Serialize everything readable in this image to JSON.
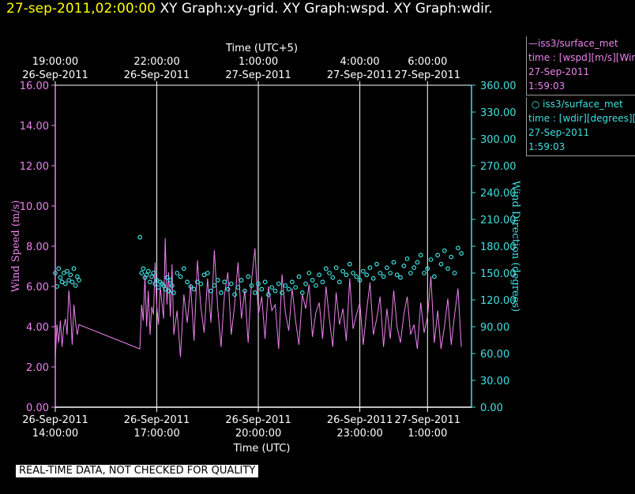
{
  "header": {
    "date": "27-sep-2011,02:00:00",
    "titles": "XY Graph:xy-grid.  XY Graph:wspd.  XY Graph:wdir."
  },
  "legend": {
    "wspd": {
      "source": "iss3/surface_met",
      "desc": "time : [wspd][m/s][Wind",
      "date": "27-Sep-2011",
      "time": "1:59:03"
    },
    "wdir": {
      "source": "iss3/surface_met",
      "desc": "time : [wdir][degrees][W",
      "date": "27-Sep-2011",
      "time": "1:59:03"
    }
  },
  "quality_note": "REAL-TIME DATA, NOT CHECKED FOR QUALITY",
  "colors": {
    "wspd": "#ee82ee",
    "wdir": "#40e0e0",
    "grid": "#ffffff"
  },
  "chart_data": {
    "type": "scatter",
    "x_axis": {
      "title_bottom": "Time (UTC)",
      "title_top": "Time (UTC+5)",
      "range_hours_utc": [
        14.0,
        26.3
      ],
      "bottom_ticks": [
        {
          "t": 14.0,
          "date": "26-Sep-2011",
          "time": "14:00:00"
        },
        {
          "t": 17.0,
          "date": "26-Sep-2011",
          "time": "17:00:00"
        },
        {
          "t": 20.0,
          "date": "26-Sep-2011",
          "time": "20:00:00"
        },
        {
          "t": 23.0,
          "date": "26-Sep-2011",
          "time": "23:00:00"
        },
        {
          "t": 25.0,
          "date": "27-Sep-2011",
          "time": "1:00:00"
        }
      ],
      "top_ticks": [
        {
          "t": 14.0,
          "time": "19:00:00",
          "date": "26-Sep-2011"
        },
        {
          "t": 17.0,
          "time": "22:00:00",
          "date": "26-Sep-2011"
        },
        {
          "t": 20.0,
          "time": "1:00:00",
          "date": "27-Sep-2011"
        },
        {
          "t": 23.0,
          "time": "4:00:00",
          "date": "27-Sep-2011"
        },
        {
          "t": 25.0,
          "time": "6:00:00",
          "date": "27-Sep-2011"
        }
      ]
    },
    "y_left": {
      "label": "Wind Speed (m/s)",
      "ylim": [
        0,
        16
      ],
      "ticks": [
        "0.00",
        "2.00",
        "4.00",
        "6.00",
        "8.00",
        "10.00",
        "12.00",
        "14.00",
        "16.00"
      ]
    },
    "y_right": {
      "label": "Wind Direction (degrees)",
      "ylim": [
        0,
        360
      ],
      "ticks": [
        "0.00",
        "30.00",
        "60.00",
        "90.00",
        "120.00",
        "150.00",
        "180.00",
        "210.00",
        "240.00",
        "270.00",
        "300.00",
        "330.00",
        "360.00"
      ]
    },
    "grid": "vertical",
    "series": [
      {
        "name": "iss3/surface_met",
        "axis": "left",
        "style": "line",
        "x": [
          14.0,
          14.05,
          14.1,
          14.15,
          14.2,
          14.25,
          14.3,
          14.35,
          14.4,
          14.45,
          14.5,
          14.55,
          14.6,
          14.65,
          14.7,
          16.5,
          16.55,
          16.6,
          16.65,
          16.7,
          16.75,
          16.8,
          16.85,
          16.9,
          16.95,
          17.0,
          17.05,
          17.1,
          17.15,
          17.2,
          17.25,
          17.3,
          17.35,
          17.4,
          17.45,
          17.5,
          17.6,
          17.7,
          17.8,
          17.9,
          18.0,
          18.1,
          18.2,
          18.3,
          18.4,
          18.5,
          18.6,
          18.7,
          18.8,
          18.9,
          19.0,
          19.1,
          19.2,
          19.3,
          19.4,
          19.5,
          19.6,
          19.7,
          19.8,
          19.9,
          20.0,
          20.1,
          20.2,
          20.3,
          20.4,
          20.5,
          20.6,
          20.7,
          20.8,
          20.9,
          21.0,
          21.1,
          21.2,
          21.3,
          21.4,
          21.5,
          21.6,
          21.7,
          21.8,
          21.9,
          22.0,
          22.1,
          22.2,
          22.3,
          22.4,
          22.5,
          22.6,
          22.7,
          22.8,
          22.9,
          23.0,
          23.1,
          23.2,
          23.3,
          23.4,
          23.5,
          23.6,
          23.7,
          23.8,
          23.9,
          24.0,
          24.1,
          24.2,
          24.3,
          24.4,
          24.5,
          24.6,
          24.7,
          24.8,
          24.9,
          25.0,
          25.1,
          25.2,
          25.3,
          25.4,
          25.5,
          25.6,
          25.7,
          25.8,
          25.9,
          26.0
        ],
        "values": [
          2.4,
          4.1,
          3.2,
          4.3,
          3.0,
          4.0,
          4.4,
          3.6,
          5.8,
          4.8,
          3.1,
          5.1,
          4.2,
          3.6,
          4.1,
          2.9,
          5.1,
          4.3,
          6.5,
          4.0,
          5.8,
          3.6,
          5.0,
          4.6,
          7.2,
          5.0,
          4.1,
          6.0,
          5.2,
          4.4,
          8.4,
          5.1,
          6.7,
          4.5,
          7.1,
          3.6,
          4.8,
          2.5,
          5.6,
          4.2,
          6.1,
          3.3,
          7.3,
          5.0,
          3.7,
          6.4,
          4.2,
          7.8,
          4.9,
          3.0,
          5.6,
          6.7,
          3.6,
          5.1,
          7.2,
          4.4,
          5.8,
          3.2,
          6.3,
          7.9,
          4.6,
          5.5,
          3.4,
          6.0,
          4.8,
          5.1,
          2.9,
          6.6,
          4.7,
          3.8,
          5.9,
          4.3,
          3.1,
          5.6,
          4.9,
          6.1,
          3.5,
          4.7,
          5.2,
          3.4,
          6.0,
          4.4,
          3.0,
          5.7,
          4.1,
          4.9,
          3.3,
          6.4,
          3.9,
          4.6,
          5.2,
          3.1,
          4.8,
          6.2,
          3.6,
          4.4,
          5.5,
          3.0,
          4.9,
          3.4,
          5.8,
          4.0,
          3.2,
          4.6,
          5.5,
          3.6,
          4.1,
          2.9,
          5.2,
          3.7,
          4.5,
          6.5,
          3.2,
          4.8,
          2.9,
          4.0,
          5.4,
          3.1,
          4.6,
          5.9,
          3.0
        ]
      },
      {
        "name": "iss3/surface_met",
        "axis": "right",
        "style": "circle",
        "x": [
          14.0,
          14.05,
          14.1,
          14.15,
          14.2,
          14.25,
          14.3,
          14.35,
          14.4,
          14.45,
          14.5,
          14.55,
          14.6,
          14.65,
          14.7,
          16.5,
          16.55,
          16.6,
          16.65,
          16.7,
          16.75,
          16.8,
          16.85,
          16.9,
          16.95,
          17.0,
          17.05,
          17.1,
          17.15,
          17.2,
          17.25,
          17.3,
          17.35,
          17.4,
          17.45,
          17.5,
          17.6,
          17.7,
          17.8,
          17.9,
          18.0,
          18.1,
          18.2,
          18.3,
          18.4,
          18.5,
          18.6,
          18.7,
          18.8,
          18.9,
          19.0,
          19.1,
          19.2,
          19.3,
          19.4,
          19.5,
          19.6,
          19.7,
          19.8,
          19.9,
          20.0,
          20.1,
          20.2,
          20.3,
          20.4,
          20.5,
          20.6,
          20.7,
          20.8,
          20.9,
          21.0,
          21.1,
          21.2,
          21.3,
          21.4,
          21.5,
          21.6,
          21.7,
          21.8,
          21.9,
          22.0,
          22.1,
          22.2,
          22.3,
          22.4,
          22.5,
          22.6,
          22.7,
          22.8,
          22.9,
          23.0,
          23.1,
          23.2,
          23.3,
          23.4,
          23.5,
          23.6,
          23.7,
          23.8,
          23.9,
          24.0,
          24.1,
          24.2,
          24.3,
          24.4,
          24.5,
          24.6,
          24.7,
          24.8,
          24.9,
          25.0,
          25.1,
          25.2,
          25.3,
          25.4,
          25.5,
          25.6,
          25.7,
          25.8,
          25.9,
          26.0
        ],
        "values": [
          150,
          135,
          155,
          145,
          140,
          150,
          138,
          152,
          142,
          148,
          140,
          155,
          136,
          146,
          142,
          190,
          150,
          155,
          145,
          148,
          152,
          140,
          146,
          150,
          138,
          142,
          134,
          140,
          138,
          136,
          132,
          145,
          130,
          142,
          136,
          128,
          150,
          146,
          155,
          140,
          135,
          132,
          140,
          138,
          148,
          150,
          130,
          136,
          142,
          128,
          140,
          132,
          138,
          126,
          134,
          142,
          130,
          146,
          136,
          128,
          138,
          132,
          140,
          126,
          134,
          130,
          138,
          128,
          136,
          132,
          140,
          134,
          146,
          128,
          138,
          150,
          142,
          136,
          148,
          140,
          155,
          150,
          145,
          156,
          140,
          152,
          148,
          160,
          150,
          146,
          142,
          152,
          148,
          156,
          144,
          160,
          150,
          146,
          156,
          150,
          162,
          148,
          145,
          158,
          166,
          150,
          156,
          162,
          170,
          150,
          155,
          165,
          146,
          170,
          160,
          175,
          155,
          168,
          150,
          178,
          172
        ]
      }
    ]
  }
}
